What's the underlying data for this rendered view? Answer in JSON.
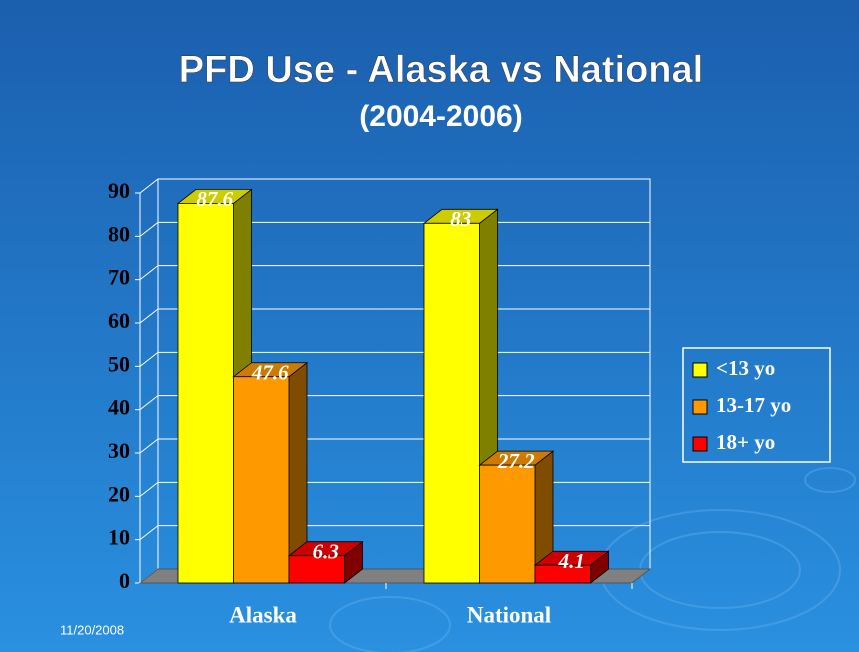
{
  "chart_data": {
    "type": "bar3d",
    "title": "PFD Use - Alaska vs National",
    "subtitle": "(2004-2006)",
    "date": "11/20/2008",
    "categories": [
      "Alaska",
      "National"
    ],
    "series": [
      {
        "name": "<13  yo",
        "color": "#ffff00",
        "values": [
          87.6,
          83
        ]
      },
      {
        "name": "13-17 yo",
        "color": "#ff9900",
        "values": [
          47.6,
          27.2
        ]
      },
      {
        "name": "18+ yo",
        "color": "#ff0000",
        "values": [
          6.3,
          4.1
        ]
      }
    ],
    "ylim": [
      0,
      90
    ],
    "yticks": [
      0,
      10,
      20,
      30,
      40,
      50,
      60,
      70,
      80,
      90
    ],
    "grid": true,
    "legend": "right"
  }
}
